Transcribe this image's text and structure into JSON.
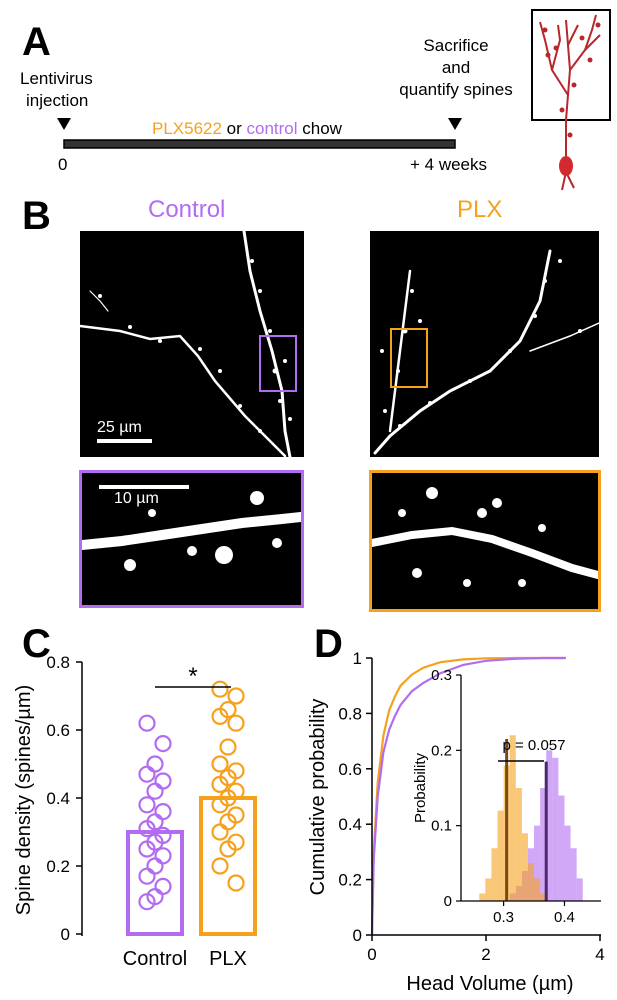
{
  "panels": {
    "a": "A",
    "b": "B",
    "c": "C",
    "d": "D"
  },
  "timeline": {
    "left_label_1": "Lentivirus",
    "left_label_2": "injection",
    "right_label_1": "Sacrifice",
    "right_label_2": "and",
    "right_label_3": "quantify spines",
    "chow_part1": "PLX5622",
    "chow_part2": " or ",
    "chow_part3": "control",
    "chow_part4": " chow",
    "start": "0",
    "end": "+ 4 weeks"
  },
  "images": {
    "control_title": "Control",
    "plx_title": "PLX",
    "scale_large": "25 µm",
    "scale_small": "10 µm"
  },
  "colors": {
    "control": "#b26cf2",
    "plx": "#f5a11e",
    "neuron": "#b7272c"
  },
  "chart_data": [
    {
      "type": "bar",
      "categories": [
        "Control",
        "PLX"
      ],
      "values": [
        0.3,
        0.4
      ],
      "points": {
        "Control": [
          0.62,
          0.56,
          0.5,
          0.47,
          0.45,
          0.42,
          0.38,
          0.36,
          0.33,
          0.31,
          0.29,
          0.27,
          0.25,
          0.23,
          0.2,
          0.17,
          0.14,
          0.11,
          0.095
        ],
        "PLX": [
          0.72,
          0.7,
          0.66,
          0.64,
          0.62,
          0.55,
          0.5,
          0.48,
          0.46,
          0.44,
          0.42,
          0.4,
          0.38,
          0.35,
          0.33,
          0.3,
          0.27,
          0.25,
          0.2,
          0.15
        ]
      },
      "ylabel": "Spine density (spines/µm)",
      "ylim": [
        0,
        0.8
      ],
      "yticks": [
        "0",
        "0.2",
        "0.4",
        "0.6",
        "0.8"
      ],
      "significance": "*"
    },
    {
      "type": "line",
      "xlabel": "Head Volume (µm)",
      "ylabel": "Cumulative probability",
      "xlim": [
        0,
        4
      ],
      "ylim": [
        0,
        1
      ],
      "xticks": [
        "0",
        "2",
        "4"
      ],
      "yticks": [
        "0",
        "0.2",
        "0.4",
        "0.6",
        "0.8",
        "1"
      ],
      "series": [
        {
          "x": [
            0,
            0.03,
            0.1,
            0.2,
            0.3,
            0.4,
            0.5,
            0.7,
            0.9,
            1.2,
            1.6,
            2.0,
            2.5,
            3.0,
            3.4
          ],
          "y": [
            0,
            0.3,
            0.55,
            0.72,
            0.81,
            0.86,
            0.9,
            0.94,
            0.965,
            0.985,
            0.995,
            0.999,
            1,
            1,
            1
          ]
        },
        {
          "x": [
            0,
            0.03,
            0.1,
            0.2,
            0.3,
            0.4,
            0.5,
            0.7,
            0.9,
            1.2,
            1.6,
            2.0,
            2.5,
            3.0,
            3.4
          ],
          "y": [
            0,
            0.27,
            0.5,
            0.66,
            0.74,
            0.79,
            0.83,
            0.88,
            0.91,
            0.945,
            0.975,
            0.99,
            0.997,
            1,
            1
          ]
        }
      ],
      "inset": {
        "ylabel": "Probability",
        "ylim": [
          0,
          0.3
        ],
        "xlim": [
          0.23,
          0.46
        ],
        "xticks": [
          "0.3",
          "0.4"
        ],
        "yticks": [
          "0",
          "0.1",
          "0.2",
          "0.3"
        ],
        "annotation": "p = 0.057",
        "bin_edges": [
          0.26,
          0.27,
          0.28,
          0.29,
          0.3,
          0.31,
          0.32,
          0.33,
          0.34,
          0.35,
          0.36,
          0.37,
          0.38,
          0.39,
          0.4,
          0.41,
          0.42,
          0.43
        ],
        "plx_hist": [
          0.01,
          0.03,
          0.07,
          0.12,
          0.18,
          0.22,
          0.15,
          0.09,
          0.05,
          0.03,
          0.01,
          0,
          0,
          0,
          0,
          0,
          0
        ],
        "control_hist": [
          0,
          0,
          0,
          0,
          0,
          0.01,
          0.02,
          0.04,
          0.07,
          0.1,
          0.15,
          0.2,
          0.19,
          0.14,
          0.1,
          0.07,
          0.03
        ],
        "plx_mean": 0.305,
        "control_mean": 0.37
      }
    }
  ]
}
